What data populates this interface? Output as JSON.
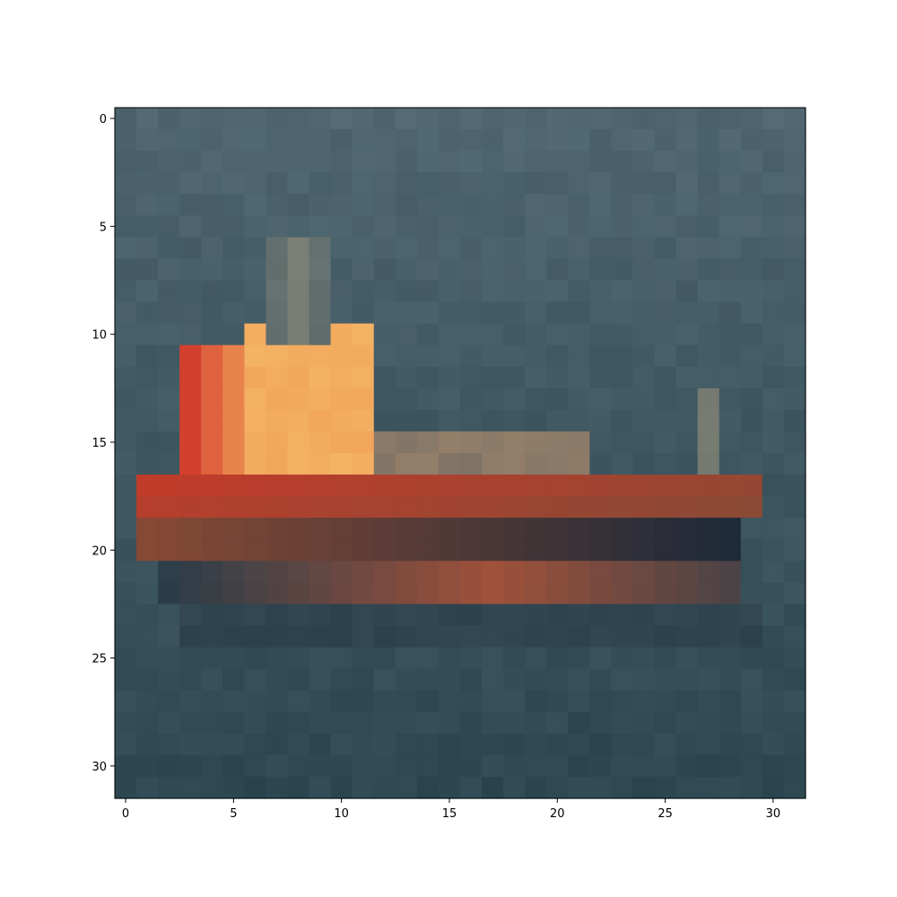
{
  "image": {
    "grid_size": [
      32,
      32
    ],
    "palette": {
      "water": "#3e5d68",
      "water_dark": "#2e4852",
      "sky": "#4f6670",
      "cabin_orange": "#f2a65a",
      "cabin_yellow": "#f5b86a",
      "hull_red": "#c23b2a",
      "hull_brown": "#8a4a35",
      "hull_dark": "#1f2a38",
      "mast_tan": "#8e8a78",
      "accent_red": "#d4402e"
    }
  },
  "axes": {
    "x_ticks": [
      "0",
      "5",
      "10",
      "15",
      "20",
      "25",
      "30"
    ],
    "y_ticks": [
      "0",
      "5",
      "10",
      "15",
      "20",
      "25",
      "30"
    ],
    "x_tick_values": [
      0,
      5,
      10,
      15,
      20,
      25,
      30
    ],
    "y_tick_values": [
      0,
      5,
      10,
      15,
      20,
      25,
      30
    ],
    "xlim": [
      -0.5,
      31.5
    ],
    "ylim": [
      31.5,
      -0.5
    ]
  }
}
